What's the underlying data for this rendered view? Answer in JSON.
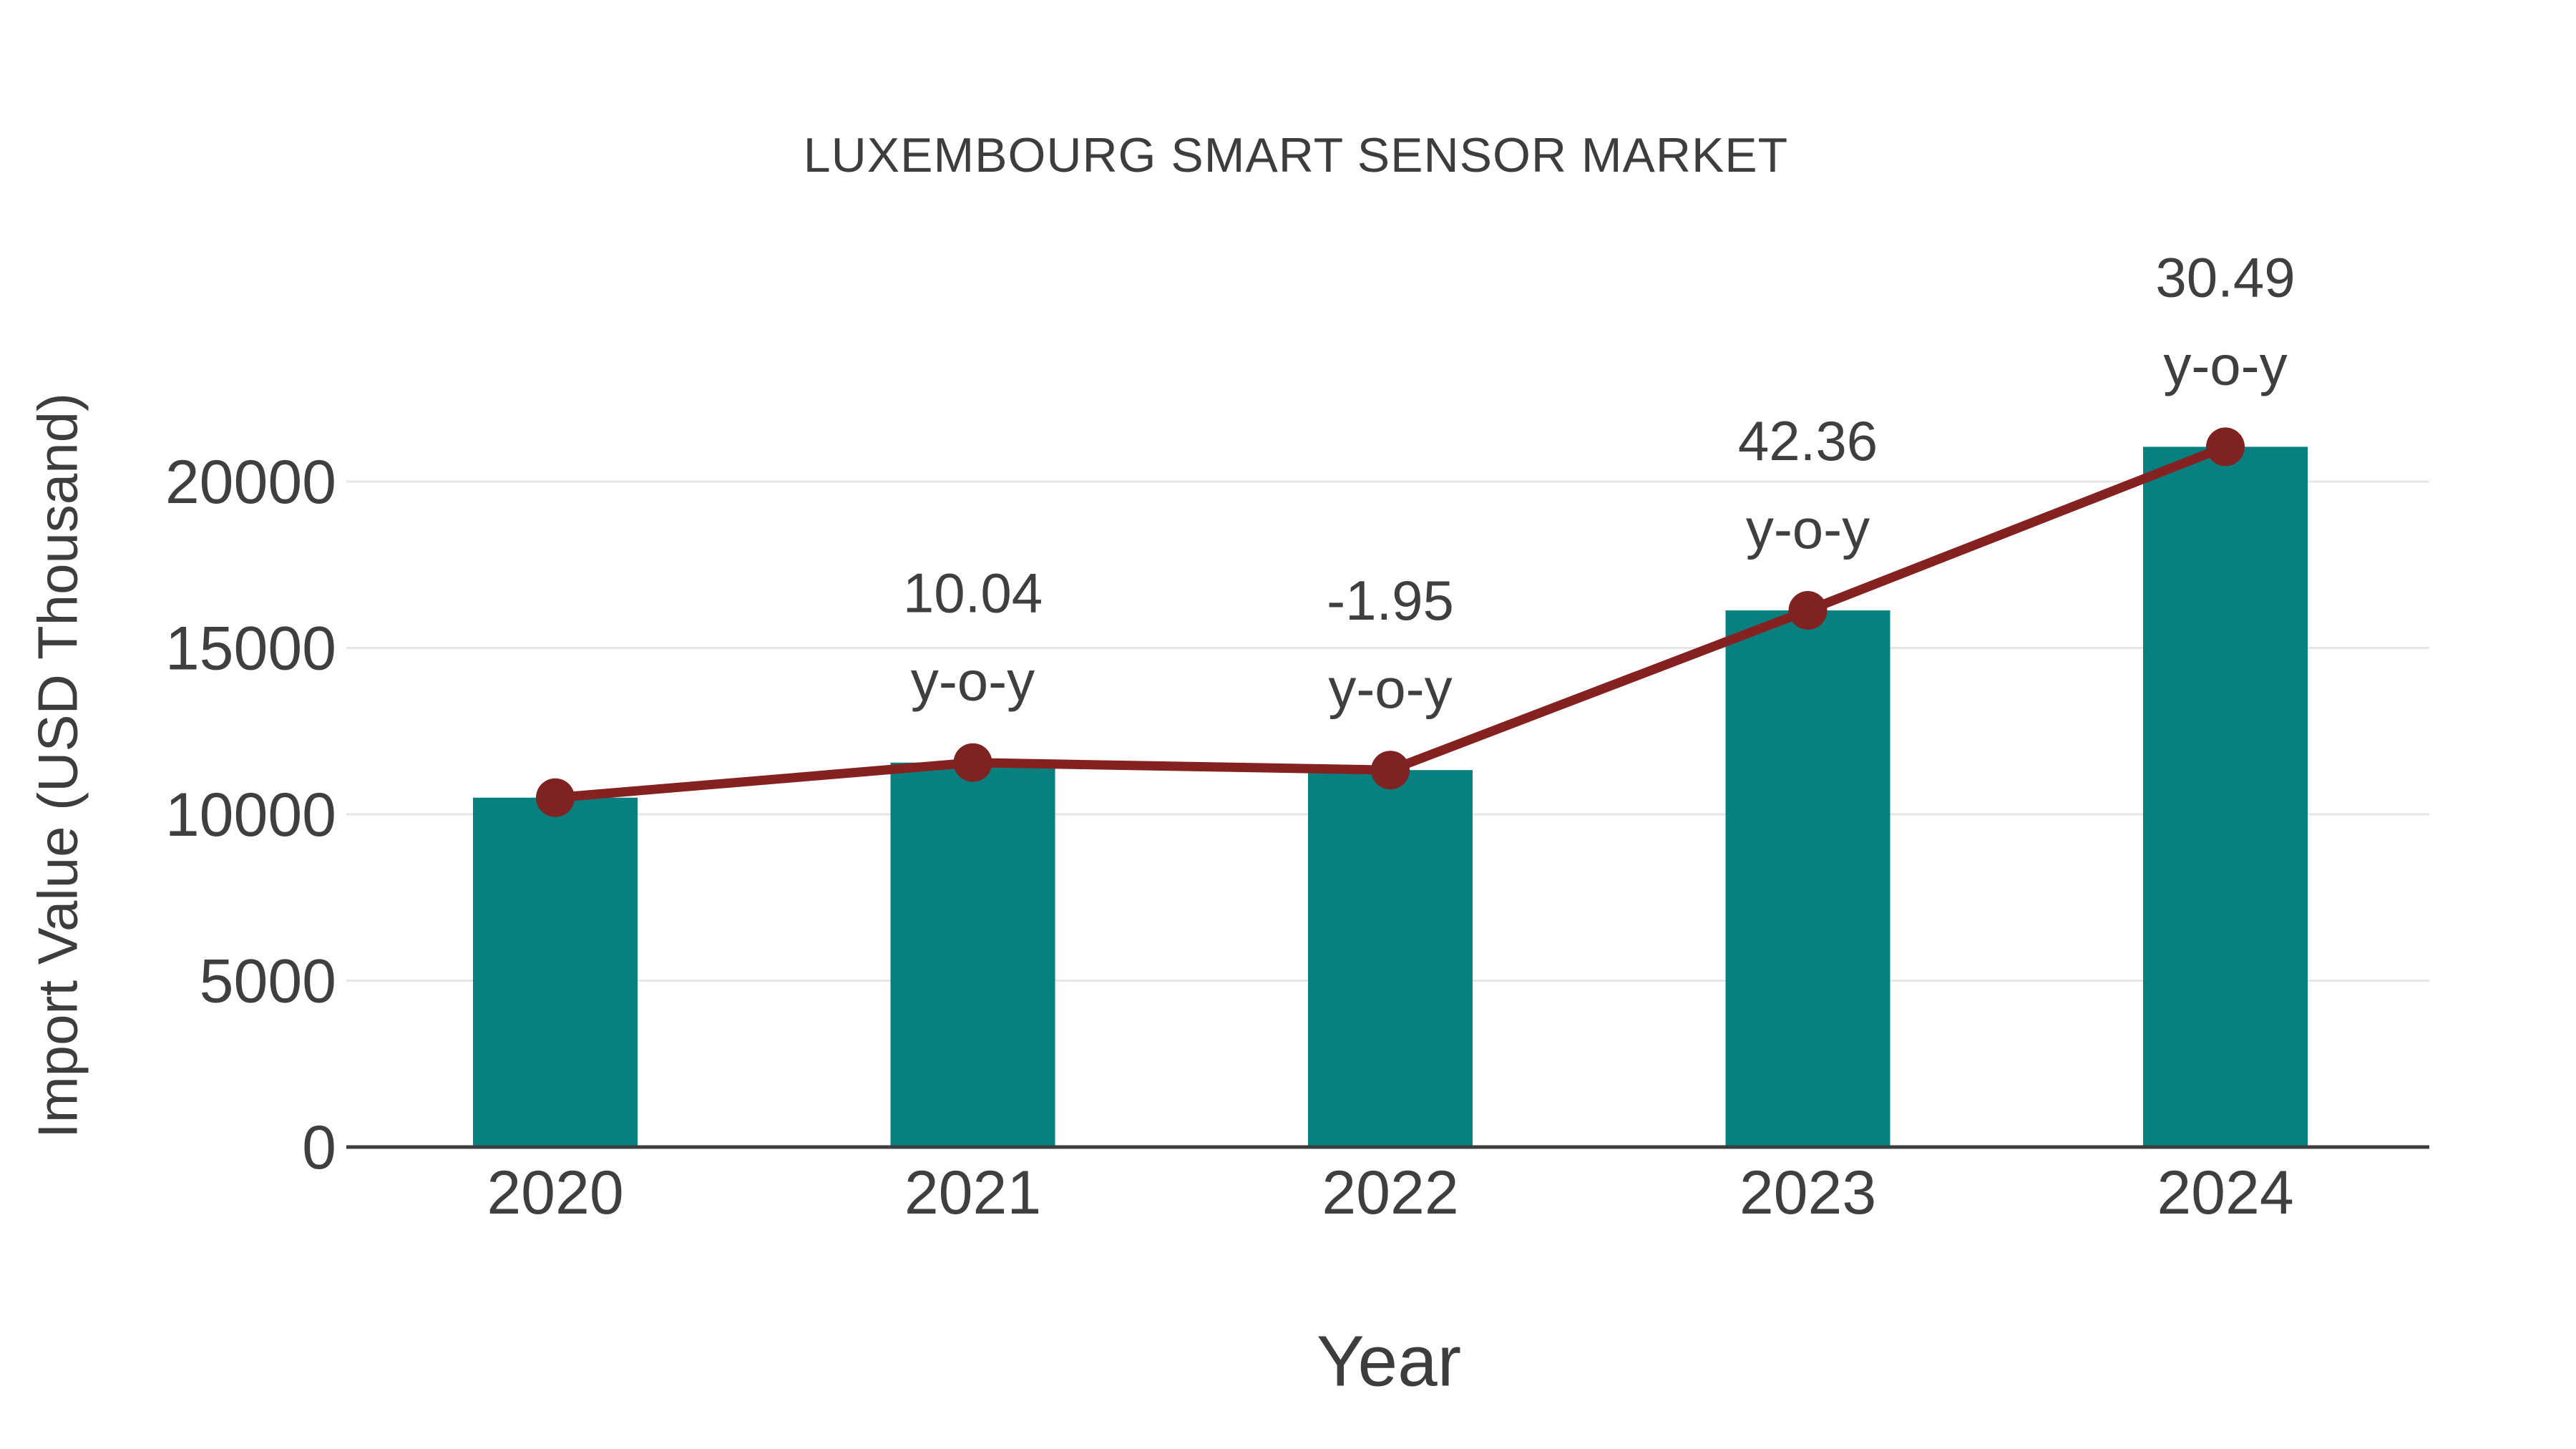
{
  "figure": {
    "title": "LUXEMBOURG SMART SENSOR MARKET",
    "x_axis_title": "Year",
    "y_axis_title": "Import Value (USD Thousand)"
  },
  "chart_data": {
    "type": "bar",
    "title": "LUXEMBOURG SMART SENSOR MARKET",
    "xlabel": "Year",
    "ylabel": "Import Value (USD Thousand)",
    "categories": [
      "2020",
      "2021",
      "2022",
      "2023",
      "2024"
    ],
    "series": [
      {
        "name": "Import Value (USD Thousand)",
        "type": "bar",
        "values": [
          10500,
          11554,
          11329,
          16128,
          21045
        ]
      },
      {
        "name": "Import Value trend",
        "type": "line",
        "values": [
          10500,
          11554,
          11329,
          16128,
          21045
        ]
      }
    ],
    "annotations": [
      {
        "category": "2021",
        "line1": "10.04",
        "line2": "y-o-y"
      },
      {
        "category": "2022",
        "line1": "-1.95",
        "line2": "y-o-y"
      },
      {
        "category": "2023",
        "line1": "42.36",
        "line2": "y-o-y"
      },
      {
        "category": "2024",
        "line1": "30.49",
        "line2": "y-o-y"
      }
    ],
    "yticks": [
      0,
      5000,
      10000,
      15000,
      20000
    ],
    "ylim": [
      0,
      22400
    ],
    "grid": true,
    "legend_position": "none",
    "colors": {
      "bar": "#088080",
      "line": "#842222",
      "marker": "#7f2222",
      "gridline": "#e6e6e6",
      "axis_line": "#3d3d3d",
      "text": "#3f3f3f",
      "background": "#ffffff"
    }
  }
}
